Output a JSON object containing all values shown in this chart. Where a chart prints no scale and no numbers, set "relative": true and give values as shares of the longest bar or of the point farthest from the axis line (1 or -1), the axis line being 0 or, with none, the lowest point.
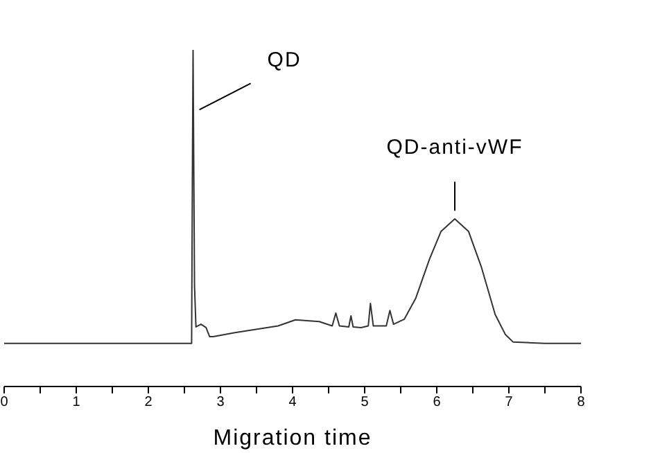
{
  "chart_data": {
    "type": "line",
    "relative": true,
    "xlabel": "Migration time",
    "xlim": [
      0,
      8
    ],
    "xticks": [
      0,
      {
        "value": 0.5,
        "label": null
      },
      1,
      {
        "value": 1.5,
        "label": null
      },
      2,
      {
        "value": 2.5,
        "label": null
      },
      3,
      {
        "value": 3.5,
        "label": null
      },
      4,
      {
        "value": 4.5,
        "label": null
      },
      5,
      {
        "value": 5.5,
        "label": null
      },
      6,
      {
        "value": 6.5,
        "label": null
      },
      7,
      {
        "value": 7.5,
        "label": null
      },
      8
    ],
    "x": [
      0,
      1,
      2,
      2.6,
      2.61,
      2.62,
      2.64,
      2.66,
      2.73,
      2.8,
      2.85,
      2.9,
      3.2,
      3.8,
      4.04,
      4.37,
      4.55,
      4.6,
      4.65,
      4.78,
      4.81,
      4.84,
      4.95,
      5.05,
      5.08,
      5.12,
      5.3,
      5.35,
      5.4,
      5.55,
      5.71,
      5.9,
      6.06,
      6.25,
      6.44,
      6.62,
      6.81,
      6.95,
      7.06,
      7.5,
      8
    ],
    "series": [
      {
        "color": "#333333",
        "values": [
          0.128,
          0.128,
          0.128,
          0.128,
          0.6,
          1,
          0.3,
          0.177,
          0.185,
          0.175,
          0.148,
          0.148,
          0.16,
          0.18,
          0.198,
          0.193,
          0.18,
          0.218,
          0.18,
          0.177,
          0.21,
          0.177,
          0.175,
          0.18,
          0.247,
          0.18,
          0.18,
          0.226,
          0.185,
          0.2,
          0.263,
          0.379,
          0.461,
          0.498,
          0.461,
          0.354,
          0.214,
          0.155,
          0.132,
          0.128,
          0.128
        ]
      }
    ],
    "annotations": [
      {
        "text": "QD",
        "x": 2.65,
        "y": 0.81
      },
      {
        "text": "QD-anti-vWF",
        "x": 6.25,
        "y": 0.51
      }
    ],
    "grid": false,
    "legend": false,
    "marker": "none",
    "line_style": "solid"
  }
}
